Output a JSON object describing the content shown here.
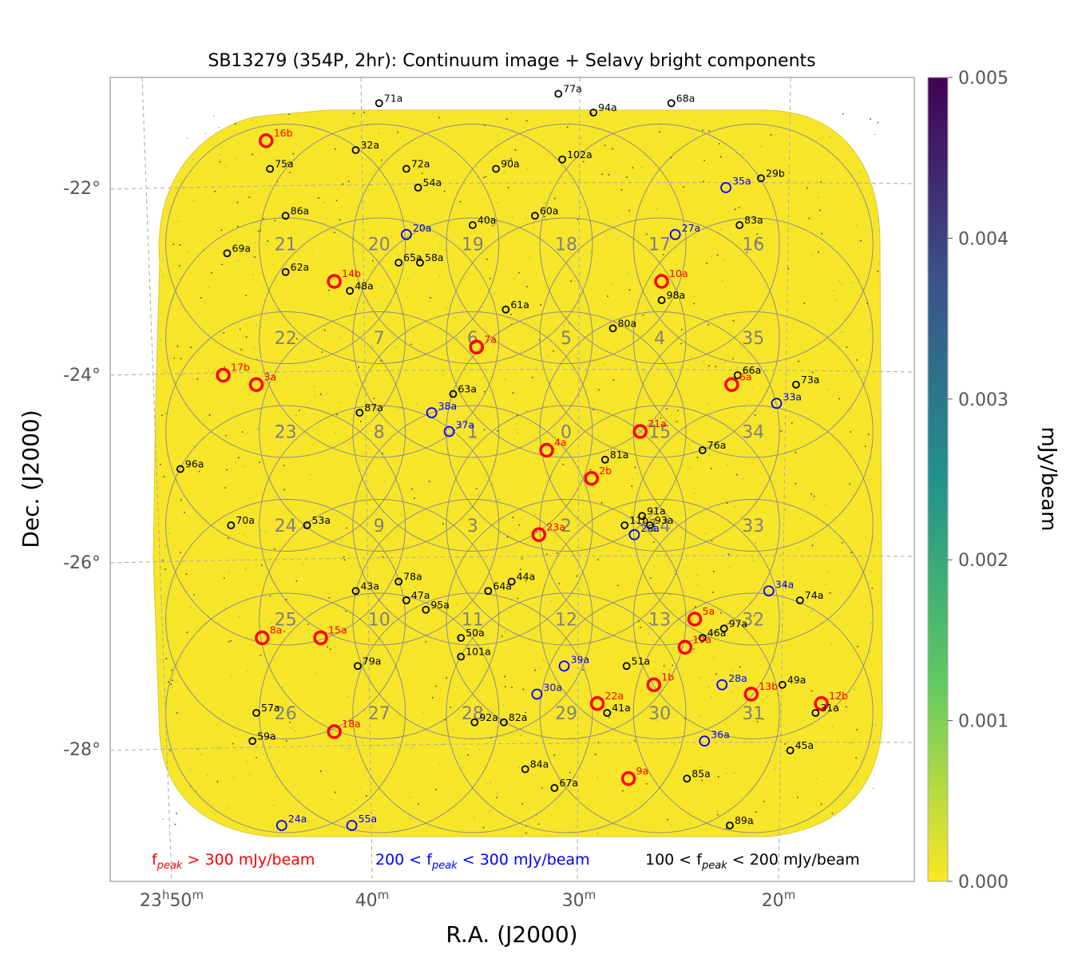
{
  "chart_data": {
    "type": "scatter",
    "title": "SB13279 (354P, 2hr): Continuum image + Selavy bright components",
    "xlabel": "R.A. (J2000)",
    "ylabel": "Dec. (J2000)",
    "x_ticks": [
      {
        "h": "23",
        "m": "50"
      },
      {
        "h": "",
        "m": "40"
      },
      {
        "h": "",
        "m": "30"
      },
      {
        "h": "",
        "m": "20"
      }
    ],
    "y_ticks": [
      "-22°",
      "-24°",
      "-26°",
      "-28°"
    ],
    "colorbar": {
      "label": "mJy/beam",
      "min": 0.0,
      "max": 0.005,
      "ticks": [
        "0.000",
        "0.001",
        "0.002",
        "0.003",
        "0.004",
        "0.005"
      ],
      "colormap": "viridis (reversed)"
    },
    "legend": [
      {
        "text_pre": "f",
        "text_sub": "peak",
        "text_post": " > 300 mJy/beam",
        "color": "#ff0000"
      },
      {
        "text_pre": "200 < f",
        "text_sub": "peak",
        "text_post": " < 300 mJy/beam",
        "color": "#0000ff"
      },
      {
        "text_pre": "100 < f",
        "text_sub": "peak",
        "text_post": " < 200 mJy/beam",
        "color": "#000000"
      }
    ],
    "beams": [
      {
        "id": "0",
        "ra": 349.4,
        "dec": -24.6
      },
      {
        "id": "1",
        "ra": 354.2,
        "dec": -24.6
      },
      {
        "id": "2",
        "ra": 349.4,
        "dec": -25.6
      },
      {
        "id": "3",
        "ra": 354.2,
        "dec": -25.6
      },
      {
        "id": "4",
        "ra": 344.6,
        "dec": -23.6
      },
      {
        "id": "5",
        "ra": 349.4,
        "dec": -23.6
      },
      {
        "id": "6",
        "ra": 354.2,
        "dec": -23.6
      },
      {
        "id": "7",
        "ra": 359.0,
        "dec": -23.6
      },
      {
        "id": "8",
        "ra": 359.0,
        "dec": -24.6
      },
      {
        "id": "9",
        "ra": 359.0,
        "dec": -25.6
      },
      {
        "id": "10",
        "ra": 359.0,
        "dec": -26.6
      },
      {
        "id": "11",
        "ra": 354.2,
        "dec": -26.6
      },
      {
        "id": "12",
        "ra": 349.4,
        "dec": -26.6
      },
      {
        "id": "13",
        "ra": 344.6,
        "dec": -26.6
      },
      {
        "id": "14",
        "ra": 344.6,
        "dec": -25.6
      },
      {
        "id": "15",
        "ra": 344.6,
        "dec": -24.6
      },
      {
        "id": "16",
        "ra": 339.8,
        "dec": -22.6
      },
      {
        "id": "17",
        "ra": 344.6,
        "dec": -22.6
      },
      {
        "id": "18",
        "ra": 349.4,
        "dec": -22.6
      },
      {
        "id": "19",
        "ra": 354.2,
        "dec": -22.6
      },
      {
        "id": "20",
        "ra": 359.0,
        "dec": -22.6
      },
      {
        "id": "21",
        "ra": 363.8,
        "dec": -22.6
      },
      {
        "id": "22",
        "ra": 363.8,
        "dec": -23.6
      },
      {
        "id": "23",
        "ra": 363.8,
        "dec": -24.6
      },
      {
        "id": "24",
        "ra": 363.8,
        "dec": -25.6
      },
      {
        "id": "25",
        "ra": 363.8,
        "dec": -26.6
      },
      {
        "id": "26",
        "ra": 363.8,
        "dec": -27.6
      },
      {
        "id": "27",
        "ra": 359.0,
        "dec": -27.6
      },
      {
        "id": "28",
        "ra": 354.2,
        "dec": -27.6
      },
      {
        "id": "29",
        "ra": 349.4,
        "dec": -27.6
      },
      {
        "id": "30",
        "ra": 344.6,
        "dec": -27.6
      },
      {
        "id": "31",
        "ra": 339.8,
        "dec": -27.6
      },
      {
        "id": "32",
        "ra": 339.8,
        "dec": -26.6
      },
      {
        "id": "33",
        "ra": 339.8,
        "dec": -25.6
      },
      {
        "id": "34",
        "ra": 339.8,
        "dec": -24.6
      },
      {
        "id": "35",
        "ra": 339.8,
        "dec": -23.6
      }
    ],
    "sources": [
      {
        "label": "71a",
        "ra": 359.0,
        "dec": -21.1,
        "class": "mid"
      },
      {
        "label": "77a",
        "ra": 349.8,
        "dec": -21.0,
        "class": "mid"
      },
      {
        "label": "68a",
        "ra": 344.0,
        "dec": -21.1,
        "class": "mid"
      },
      {
        "label": "94a",
        "ra": 348.0,
        "dec": -21.2,
        "class": "mid"
      },
      {
        "label": "16b",
        "ra": 364.8,
        "dec": -21.5,
        "class": "high"
      },
      {
        "label": "32a",
        "ra": 360.2,
        "dec": -21.6,
        "class": "mid"
      },
      {
        "label": "75a",
        "ra": 364.6,
        "dec": -21.8,
        "class": "mid"
      },
      {
        "label": "72a",
        "ra": 357.6,
        "dec": -21.8,
        "class": "mid"
      },
      {
        "label": "90a",
        "ra": 353.0,
        "dec": -21.8,
        "class": "mid"
      },
      {
        "label": "102a",
        "ra": 349.6,
        "dec": -21.7,
        "class": "mid"
      },
      {
        "label": "54a",
        "ra": 357.0,
        "dec": -22.0,
        "class": "mid"
      },
      {
        "label": "35a",
        "ra": 341.2,
        "dec": -22.0,
        "class": "low"
      },
      {
        "label": "29b",
        "ra": 339.4,
        "dec": -21.9,
        "class": "mid"
      },
      {
        "label": "86a",
        "ra": 363.8,
        "dec": -22.3,
        "class": "mid"
      },
      {
        "label": "60a",
        "ra": 351.0,
        "dec": -22.3,
        "class": "mid"
      },
      {
        "label": "40a",
        "ra": 354.2,
        "dec": -22.4,
        "class": "mid"
      },
      {
        "label": "20a",
        "ra": 357.6,
        "dec": -22.5,
        "class": "low"
      },
      {
        "label": "27a",
        "ra": 343.8,
        "dec": -22.5,
        "class": "low"
      },
      {
        "label": "83a",
        "ra": 340.5,
        "dec": -22.4,
        "class": "mid"
      },
      {
        "label": "69a",
        "ra": 366.8,
        "dec": -22.7,
        "class": "mid"
      },
      {
        "label": "62a",
        "ra": 363.8,
        "dec": -22.9,
        "class": "mid"
      },
      {
        "label": "65a",
        "ra": 358.0,
        "dec": -22.8,
        "class": "mid"
      },
      {
        "label": "58a",
        "ra": 356.9,
        "dec": -22.8,
        "class": "mid"
      },
      {
        "label": "14b",
        "ra": 361.3,
        "dec": -23.0,
        "class": "high"
      },
      {
        "label": "10a",
        "ra": 344.5,
        "dec": -23.0,
        "class": "high"
      },
      {
        "label": "48a",
        "ra": 360.5,
        "dec": -23.1,
        "class": "mid"
      },
      {
        "label": "98a",
        "ra": 344.5,
        "dec": -23.2,
        "class": "mid"
      },
      {
        "label": "61a",
        "ra": 352.5,
        "dec": -23.3,
        "class": "mid"
      },
      {
        "label": "80a",
        "ra": 347.0,
        "dec": -23.5,
        "class": "mid"
      },
      {
        "label": "7a",
        "ra": 354.0,
        "dec": -23.7,
        "class": "high"
      },
      {
        "label": "17b",
        "ra": 367.0,
        "dec": -24.0,
        "class": "high"
      },
      {
        "label": "3a",
        "ra": 365.3,
        "dec": -24.1,
        "class": "high"
      },
      {
        "label": "66a",
        "ra": 340.6,
        "dec": -24.0,
        "class": "mid"
      },
      {
        "label": "6a",
        "ra": 340.9,
        "dec": -24.1,
        "class": "high"
      },
      {
        "label": "73a",
        "ra": 337.6,
        "dec": -24.1,
        "class": "mid"
      },
      {
        "label": "33a",
        "ra": 338.6,
        "dec": -24.3,
        "class": "low"
      },
      {
        "label": "63a",
        "ra": 355.2,
        "dec": -24.2,
        "class": "mid"
      },
      {
        "label": "87a",
        "ra": 360.0,
        "dec": -24.4,
        "class": "mid"
      },
      {
        "label": "38a",
        "ra": 356.3,
        "dec": -24.4,
        "class": "low"
      },
      {
        "label": "37a",
        "ra": 355.4,
        "dec": -24.6,
        "class": "low"
      },
      {
        "label": "21a",
        "ra": 345.6,
        "dec": -24.6,
        "class": "high"
      },
      {
        "label": "4a",
        "ra": 350.4,
        "dec": -24.8,
        "class": "high"
      },
      {
        "label": "76a",
        "ra": 342.4,
        "dec": -24.8,
        "class": "mid"
      },
      {
        "label": "81a",
        "ra": 347.4,
        "dec": -24.9,
        "class": "mid"
      },
      {
        "label": "2b",
        "ra": 348.1,
        "dec": -25.1,
        "class": "high"
      },
      {
        "label": "96a",
        "ra": 369.2,
        "dec": -25.0,
        "class": "mid"
      },
      {
        "label": "91a",
        "ra": 345.5,
        "dec": -25.5,
        "class": "mid"
      },
      {
        "label": "93a",
        "ra": 345.1,
        "dec": -25.6,
        "class": "mid"
      },
      {
        "label": "11b",
        "ra": 346.4,
        "dec": -25.6,
        "class": "mid"
      },
      {
        "label": "26a",
        "ra": 345.9,
        "dec": -25.7,
        "class": "low"
      },
      {
        "label": "53a",
        "ra": 362.7,
        "dec": -25.6,
        "class": "mid"
      },
      {
        "label": "70a",
        "ra": 366.6,
        "dec": -25.6,
        "class": "mid"
      },
      {
        "label": "23a",
        "ra": 350.8,
        "dec": -25.7,
        "class": "high"
      },
      {
        "label": "78a",
        "ra": 358.0,
        "dec": -26.2,
        "class": "mid"
      },
      {
        "label": "64a",
        "ra": 353.4,
        "dec": -26.3,
        "class": "mid"
      },
      {
        "label": "44a",
        "ra": 352.2,
        "dec": -26.2,
        "class": "mid"
      },
      {
        "label": "43a",
        "ra": 360.2,
        "dec": -26.3,
        "class": "mid"
      },
      {
        "label": "34a",
        "ra": 339.0,
        "dec": -26.3,
        "class": "low"
      },
      {
        "label": "74a",
        "ra": 337.4,
        "dec": -26.4,
        "class": "mid"
      },
      {
        "label": "47a",
        "ra": 357.6,
        "dec": -26.4,
        "class": "mid"
      },
      {
        "label": "95a",
        "ra": 356.6,
        "dec": -26.5,
        "class": "mid"
      },
      {
        "label": "5a",
        "ra": 342.8,
        "dec": -26.6,
        "class": "high"
      },
      {
        "label": "97a",
        "ra": 341.3,
        "dec": -26.7,
        "class": "mid"
      },
      {
        "label": "46a",
        "ra": 342.4,
        "dec": -26.8,
        "class": "mid"
      },
      {
        "label": "8a",
        "ra": 365.0,
        "dec": -26.8,
        "class": "high"
      },
      {
        "label": "15a",
        "ra": 362.0,
        "dec": -26.8,
        "class": "high"
      },
      {
        "label": "50a",
        "ra": 354.8,
        "dec": -26.8,
        "class": "mid"
      },
      {
        "label": "19a",
        "ra": 343.3,
        "dec": -26.9,
        "class": "high"
      },
      {
        "label": "101a",
        "ra": 354.8,
        "dec": -27.0,
        "class": "mid"
      },
      {
        "label": "79a",
        "ra": 360.1,
        "dec": -27.1,
        "class": "mid"
      },
      {
        "label": "39a",
        "ra": 349.5,
        "dec": -27.1,
        "class": "low"
      },
      {
        "label": "51a",
        "ra": 346.3,
        "dec": -27.1,
        "class": "mid"
      },
      {
        "label": "1b",
        "ra": 344.9,
        "dec": -27.3,
        "class": "high"
      },
      {
        "label": "28a",
        "ra": 341.4,
        "dec": -27.3,
        "class": "low"
      },
      {
        "label": "49a",
        "ra": 338.3,
        "dec": -27.3,
        "class": "mid"
      },
      {
        "label": "30a",
        "ra": 350.9,
        "dec": -27.4,
        "class": "low"
      },
      {
        "label": "13b",
        "ra": 339.9,
        "dec": -27.4,
        "class": "high"
      },
      {
        "label": "12b",
        "ra": 336.3,
        "dec": -27.5,
        "class": "high"
      },
      {
        "label": "22a",
        "ra": 347.8,
        "dec": -27.5,
        "class": "high"
      },
      {
        "label": "41a",
        "ra": 347.3,
        "dec": -27.6,
        "class": "mid"
      },
      {
        "label": "31a",
        "ra": 336.6,
        "dec": -27.6,
        "class": "mid"
      },
      {
        "label": "57a",
        "ra": 365.3,
        "dec": -27.6,
        "class": "mid"
      },
      {
        "label": "92a",
        "ra": 354.1,
        "dec": -27.7,
        "class": "mid"
      },
      {
        "label": "82a",
        "ra": 352.6,
        "dec": -27.7,
        "class": "mid"
      },
      {
        "label": "18a",
        "ra": 361.3,
        "dec": -27.8,
        "class": "high"
      },
      {
        "label": "36a",
        "ra": 342.3,
        "dec": -27.9,
        "class": "low"
      },
      {
        "label": "59a",
        "ra": 365.5,
        "dec": -27.9,
        "class": "mid"
      },
      {
        "label": "45a",
        "ra": 337.9,
        "dec": -28.0,
        "class": "mid"
      },
      {
        "label": "84a",
        "ra": 351.5,
        "dec": -28.2,
        "class": "mid"
      },
      {
        "label": "9a",
        "ra": 346.2,
        "dec": -28.3,
        "class": "high"
      },
      {
        "label": "85a",
        "ra": 343.2,
        "dec": -28.3,
        "class": "mid"
      },
      {
        "label": "67a",
        "ra": 350.0,
        "dec": -28.4,
        "class": "mid"
      },
      {
        "label": "55a",
        "ra": 360.4,
        "dec": -28.8,
        "class": "low"
      },
      {
        "label": "24a",
        "ra": 364.0,
        "dec": -28.8,
        "class": "low"
      },
      {
        "label": "89a",
        "ra": 341.0,
        "dec": -28.8,
        "class": "mid"
      }
    ]
  }
}
